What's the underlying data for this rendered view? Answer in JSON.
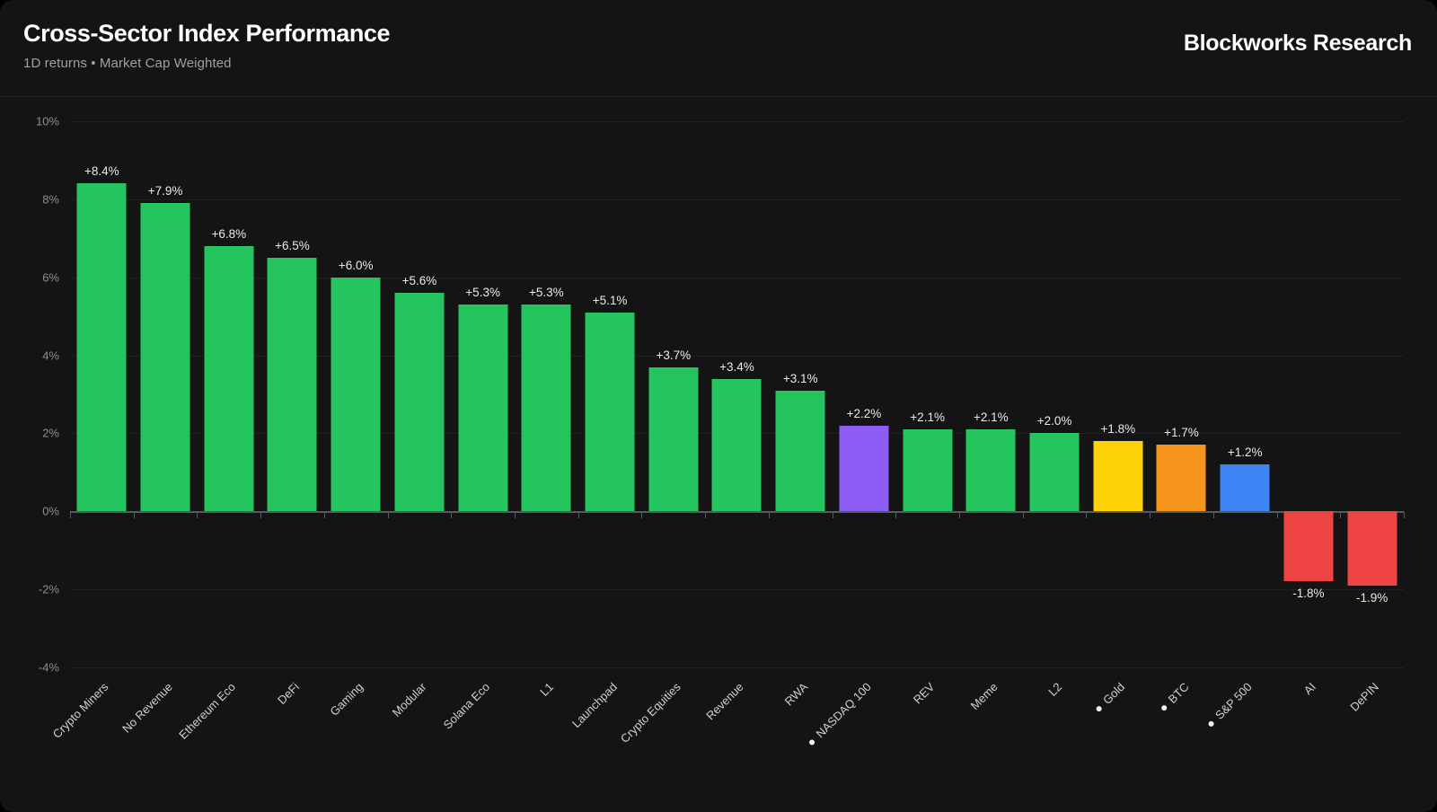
{
  "header": {
    "title": "Cross-Sector Index Performance",
    "subtitle": "1D returns • Market Cap Weighted",
    "brand": "Blockworks Research"
  },
  "colors": {
    "background": "#000000",
    "card": "#141414",
    "grid": "#212121",
    "zero_axis": "#565b60",
    "green": "#24c45e",
    "purple": "#8b5cf6",
    "yellow": "#ffd208",
    "orange": "#f7941e",
    "blue": "#3e84f5",
    "red": "#ef4444"
  },
  "chart_data": {
    "type": "bar",
    "title": "Cross-Sector Index Performance",
    "subtitle": "1D returns • Market Cap Weighted",
    "xlabel": "",
    "ylabel": "",
    "unit": "%",
    "ylim": [
      -4,
      10
    ],
    "grid": true,
    "value_labels": true,
    "legend": false,
    "y_ticks": [
      {
        "value": 10,
        "label": "10%"
      },
      {
        "value": 8,
        "label": "8%"
      },
      {
        "value": 6,
        "label": "6%"
      },
      {
        "value": 4,
        "label": "4%"
      },
      {
        "value": 2,
        "label": "2%"
      },
      {
        "value": 0,
        "label": "0%"
      },
      {
        "value": -2,
        "label": "-2%"
      },
      {
        "value": -4,
        "label": "-4%"
      }
    ],
    "bars": [
      {
        "label": "Crypto Miners",
        "value": 8.4,
        "display": "+8.4%",
        "color": "green",
        "benchmark": false
      },
      {
        "label": "No Revenue",
        "value": 7.9,
        "display": "+7.9%",
        "color": "green",
        "benchmark": false
      },
      {
        "label": "Ethereum Eco",
        "value": 6.8,
        "display": "+6.8%",
        "color": "green",
        "benchmark": false
      },
      {
        "label": "DeFi",
        "value": 6.5,
        "display": "+6.5%",
        "color": "green",
        "benchmark": false
      },
      {
        "label": "Gaming",
        "value": 6.0,
        "display": "+6.0%",
        "color": "green",
        "benchmark": false
      },
      {
        "label": "Modular",
        "value": 5.6,
        "display": "+5.6%",
        "color": "green",
        "benchmark": false
      },
      {
        "label": "Solana Eco",
        "value": 5.3,
        "display": "+5.3%",
        "color": "green",
        "benchmark": false
      },
      {
        "label": "L1",
        "value": 5.3,
        "display": "+5.3%",
        "color": "green",
        "benchmark": false
      },
      {
        "label": "Launchpad",
        "value": 5.1,
        "display": "+5.1%",
        "color": "green",
        "benchmark": false
      },
      {
        "label": "Crypto Equities",
        "value": 3.7,
        "display": "+3.7%",
        "color": "green",
        "benchmark": false
      },
      {
        "label": "Revenue",
        "value": 3.4,
        "display": "+3.4%",
        "color": "green",
        "benchmark": false
      },
      {
        "label": "RWA",
        "value": 3.1,
        "display": "+3.1%",
        "color": "green",
        "benchmark": false
      },
      {
        "label": "NASDAQ 100",
        "value": 2.2,
        "display": "+2.2%",
        "color": "purple",
        "benchmark": true
      },
      {
        "label": "REV",
        "value": 2.1,
        "display": "+2.1%",
        "color": "green",
        "benchmark": false
      },
      {
        "label": "Meme",
        "value": 2.1,
        "display": "+2.1%",
        "color": "green",
        "benchmark": false
      },
      {
        "label": "L2",
        "value": 2.0,
        "display": "+2.0%",
        "color": "green",
        "benchmark": false
      },
      {
        "label": "Gold",
        "value": 1.8,
        "display": "+1.8%",
        "color": "yellow",
        "benchmark": true
      },
      {
        "label": "BTC",
        "value": 1.7,
        "display": "+1.7%",
        "color": "orange",
        "benchmark": true
      },
      {
        "label": "S&P 500",
        "value": 1.2,
        "display": "+1.2%",
        "color": "blue",
        "benchmark": true
      },
      {
        "label": "AI",
        "value": -1.8,
        "display": "-1.8%",
        "color": "red",
        "benchmark": false
      },
      {
        "label": "DePIN",
        "value": -1.9,
        "display": "-1.9%",
        "color": "red",
        "benchmark": false
      }
    ]
  }
}
